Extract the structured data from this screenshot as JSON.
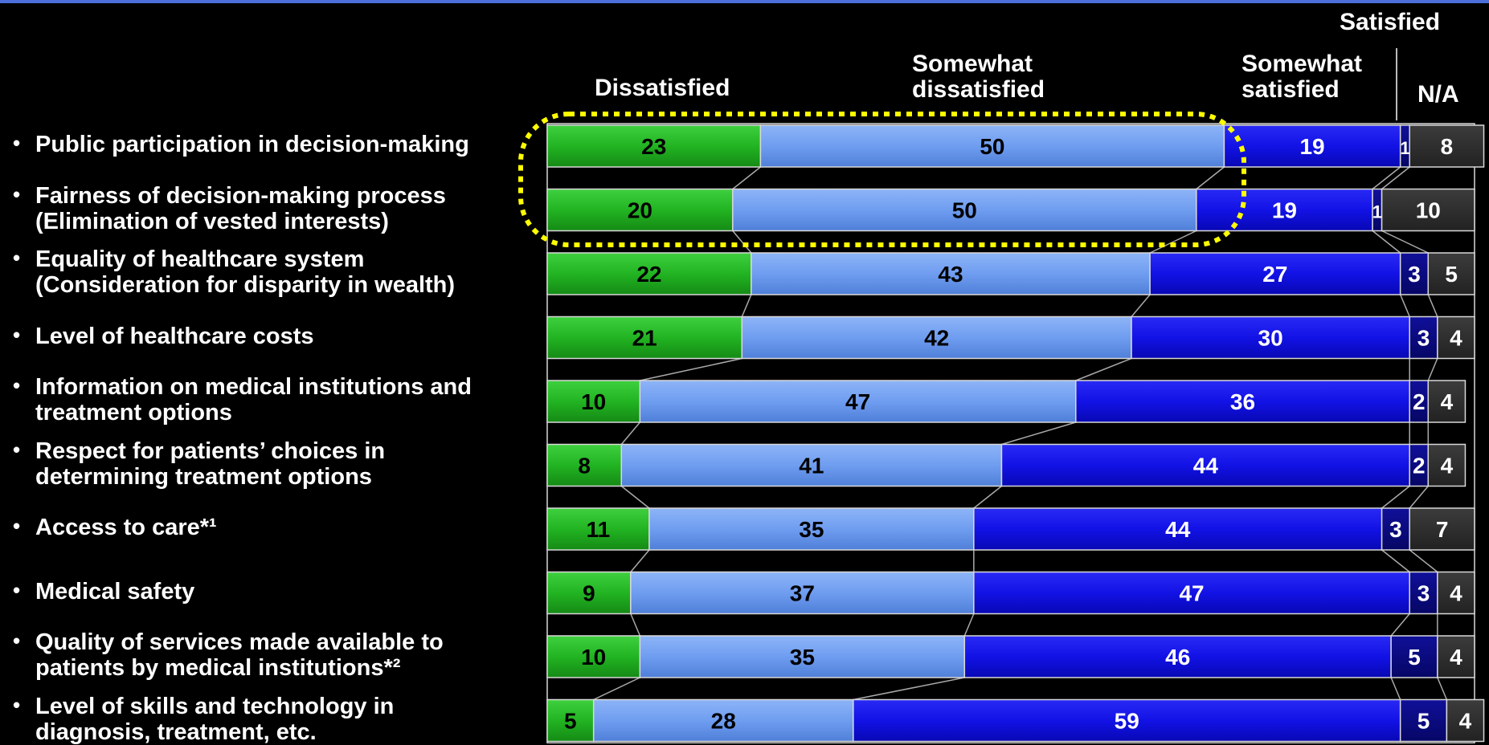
{
  "chart_data": {
    "type": "bar",
    "stacked": true,
    "orientation": "horizontal",
    "legend_headers": [
      "Dissatisfied",
      "Somewhat dissatisfied",
      "Somewhat satisfied",
      "Satisfied",
      "N/A"
    ],
    "categories": [
      "Public participation in decision-making",
      "Fairness of decision-making process\n(Elimination of vested interests)",
      "Equality of healthcare system\n(Consideration for disparity in wealth)",
      "Level of healthcare costs",
      "Information on medical institutions and\ntreatment options",
      "Respect for patients’ choices in\ndetermining treatment options",
      "Access to care*¹",
      "Medical safety",
      "Quality of services made available to\npatients by medical institutions*²",
      "Level of skills and technology in\ndiagnosis, treatment, etc."
    ],
    "series": [
      {
        "name": "Dissatisfied",
        "color": "#22b422",
        "values": [
          23,
          20,
          22,
          21,
          10,
          8,
          11,
          9,
          10,
          5
        ]
      },
      {
        "name": "Somewhat dissatisfied",
        "color": "#6f9df0",
        "values": [
          50,
          50,
          43,
          42,
          47,
          41,
          35,
          37,
          35,
          28
        ]
      },
      {
        "name": "Somewhat satisfied",
        "color": "#1212e6",
        "values": [
          19,
          19,
          27,
          30,
          36,
          44,
          44,
          47,
          46,
          59
        ]
      },
      {
        "name": "Satisfied",
        "color": "#080880",
        "values": [
          1,
          1,
          3,
          3,
          2,
          2,
          3,
          3,
          5,
          5
        ]
      },
      {
        "name": "N/A",
        "color": "#303030",
        "values": [
          8,
          10,
          5,
          4,
          4,
          4,
          7,
          4,
          4,
          4
        ]
      }
    ],
    "xlim": [
      0,
      100
    ],
    "highlight": {
      "rows": [
        0,
        1
      ],
      "series": [
        0,
        1
      ],
      "style": "dashed-yellow-ellipse",
      "color": "#ffff00"
    }
  }
}
